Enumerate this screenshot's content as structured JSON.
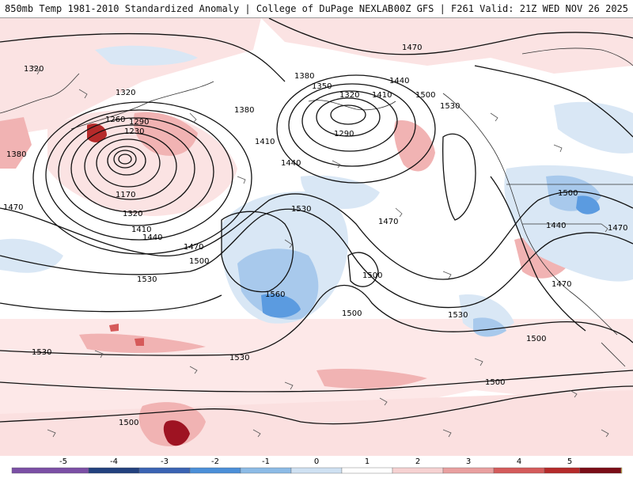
{
  "header": {
    "title": "850mb Temp 1981-2010 Standardized Anomaly | College of DuPage NEXLAB",
    "run_info": "00Z GFS | F261 Valid: 21Z WED NOV 26 2025"
  },
  "contour_labels": [
    "1320",
    "1380",
    "1470",
    "1320",
    "1260",
    "1230",
    "1290",
    "1170",
    "1320",
    "1410",
    "1440",
    "1470",
    "1500",
    "1530",
    "1380",
    "1410",
    "1440",
    "1530",
    "1380",
    "1350",
    "1320",
    "1410",
    "1440",
    "1500",
    "1530",
    "1290",
    "1470",
    "1470",
    "1560",
    "1500",
    "1530",
    "1500",
    "1500",
    "1440",
    "1470",
    "1470",
    "1500",
    "1530",
    "1530",
    "1500",
    "1500"
  ],
  "colorbar": {
    "ticks": [
      "-5",
      "-4",
      "-3",
      "-2",
      "-1",
      "0",
      "1",
      "2",
      "3",
      "4",
      "5"
    ],
    "colors": [
      "#7b4fa5",
      "#22417e",
      "#3a63b3",
      "#4b8fd8",
      "#8cbbe6",
      "#cfe1f2",
      "#ffffff",
      "#f6d2d2",
      "#e9a0a0",
      "#d45b5b",
      "#b52a2a",
      "#7a0c16",
      "#f2c530"
    ]
  },
  "palette": {
    "neg_light": "#d9e7f5",
    "neg_mid": "#a8c9ec",
    "neg_strong": "#5b9be0",
    "pos_light": "#fbe0e0",
    "pos_mid": "#f1b3b3",
    "pos_strong": "#d65a5a",
    "pos_extreme": "#9e1322"
  }
}
